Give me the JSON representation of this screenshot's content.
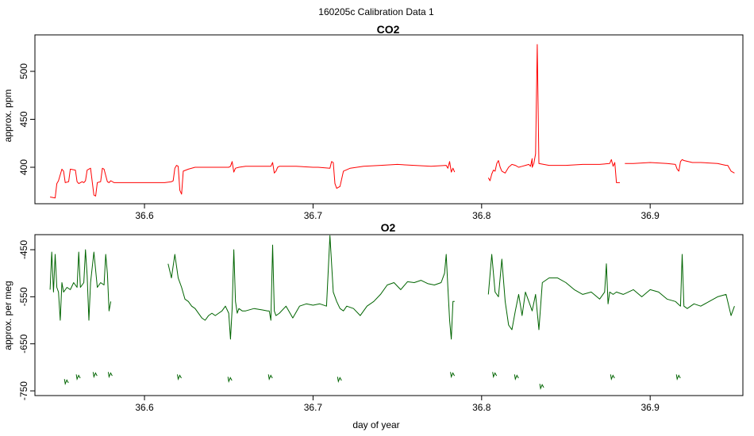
{
  "figure": {
    "suptitle": "160205c   Calibration Data 1"
  },
  "chart_data": [
    {
      "type": "line",
      "title": "CO2",
      "xlabel": "",
      "ylabel": "approx. ppm",
      "xlim": [
        36.535,
        36.955
      ],
      "ylim": [
        362,
        538
      ],
      "xticks": [
        36.6,
        36.7,
        36.8,
        36.9
      ],
      "xtick_labels": [
        "36.6",
        "36.7",
        "36.8",
        "36.9"
      ],
      "yticks": [
        400,
        450,
        500
      ],
      "ytick_labels": [
        "400",
        "450",
        "500"
      ],
      "grid": false,
      "color": "#ff0000",
      "series": [
        {
          "x": [
            36.544,
            36.547,
            36.548,
            36.549,
            36.551,
            36.552,
            36.553,
            36.555,
            36.556,
            36.559,
            36.56,
            36.561,
            36.562,
            36.563,
            36.564,
            36.565,
            36.566,
            36.568,
            36.569,
            36.57,
            36.571,
            36.572,
            36.574,
            36.575,
            36.576,
            36.578,
            36.579,
            36.58,
            36.582,
            36.584,
            36.6,
            36.612,
            36.616,
            36.617,
            36.618,
            36.619,
            36.62,
            36.621,
            36.622,
            36.623,
            36.626,
            36.63,
            36.64,
            36.65,
            36.651,
            36.652,
            36.653,
            36.654,
            36.656,
            36.66,
            36.67,
            36.675,
            36.676,
            36.677,
            36.678,
            36.679,
            36.68,
            36.69,
            36.7,
            36.703,
            36.71,
            36.711,
            36.712,
            36.713,
            36.714,
            36.716,
            36.718,
            36.722,
            36.73,
            36.74,
            36.75,
            36.76,
            36.77,
            36.779,
            36.78,
            36.781,
            36.782,
            36.783,
            36.784
          ],
          "y": [
            369,
            368,
            383,
            386,
            398,
            396,
            384,
            385,
            398,
            397,
            385,
            383,
            384,
            385,
            384,
            386,
            397,
            399,
            385,
            371,
            370,
            384,
            385,
            399,
            398,
            385,
            384,
            386,
            384,
            384,
            384,
            384,
            385,
            386,
            399,
            402,
            401,
            376,
            372,
            396,
            398,
            400,
            400,
            400,
            401,
            406,
            395,
            399,
            400,
            401,
            401,
            401,
            405,
            394,
            396,
            400,
            401,
            401,
            400,
            400,
            399,
            406,
            405,
            383,
            378,
            380,
            396,
            399,
            401,
            402,
            403,
            402,
            401,
            402,
            399,
            406,
            395,
            399,
            395
          ]
        },
        {
          "x": [
            36.804,
            36.805,
            36.806,
            36.807,
            36.808,
            36.809,
            36.81,
            36.811,
            36.812,
            36.814,
            36.816,
            36.818,
            36.82,
            36.822,
            36.824,
            36.826,
            36.828,
            36.829,
            36.83,
            36.83,
            36.831,
            36.832,
            36.833,
            36.834,
            36.84,
            36.85,
            36.86,
            36.87,
            36.876,
            36.877,
            36.878,
            36.879,
            36.88,
            36.882
          ],
          "y": [
            389,
            386,
            393,
            397,
            396,
            404,
            407,
            400,
            396,
            394,
            400,
            403,
            402,
            400,
            401,
            402,
            403,
            401,
            409,
            400,
            404,
            414,
            528,
            404,
            402,
            402,
            403,
            403,
            404,
            408,
            401,
            405,
            384,
            384
          ]
        },
        {
          "x": [
            36.885,
            36.89,
            36.9,
            36.91,
            36.915,
            36.916,
            36.917,
            36.918,
            36.919,
            36.92,
            36.925,
            36.93,
            36.94,
            36.945,
            36.946,
            36.948,
            36.95
          ],
          "y": [
            404,
            404,
            405,
            404,
            403,
            398,
            396,
            406,
            408,
            407,
            405,
            405,
            404,
            402,
            402,
            396,
            394
          ]
        }
      ]
    },
    {
      "type": "line",
      "title": "O2",
      "xlabel": "day of year",
      "ylabel": "approx. per meg",
      "xlim": [
        36.535,
        36.955
      ],
      "ylim": [
        -760,
        -418
      ],
      "xticks": [
        36.6,
        36.7,
        36.8,
        36.9
      ],
      "xtick_labels": [
        "36.6",
        "36.7",
        "36.8",
        "36.9"
      ],
      "yticks": [
        -450,
        -550,
        -650,
        -750
      ],
      "ytick_labels": [
        "-450",
        "-550",
        "-650",
        "-750"
      ],
      "grid": false,
      "color": "#006400",
      "series": [
        {
          "x": [
            36.544,
            36.545,
            36.546,
            36.547,
            36.548,
            36.549,
            36.55,
            36.551,
            36.552,
            36.554,
            36.556,
            36.558,
            36.56,
            36.561,
            36.562,
            36.564,
            36.565,
            36.566,
            36.567,
            36.568,
            36.57,
            36.572,
            36.574,
            36.576,
            36.577,
            36.578,
            36.579,
            36.58
          ],
          "y": [
            -535,
            -455,
            -540,
            -460,
            -530,
            -540,
            -600,
            -520,
            -540,
            -530,
            -535,
            -520,
            -530,
            -455,
            -530,
            -520,
            -450,
            -505,
            -600,
            -520,
            -455,
            -530,
            -520,
            -525,
            -460,
            -500,
            -580,
            -560
          ]
        },
        {
          "x": [
            36.614,
            36.616,
            36.618,
            36.62,
            36.622,
            36.624,
            36.626,
            36.628,
            36.63,
            36.632,
            36.634,
            36.636,
            36.638,
            36.64,
            36.642,
            36.644,
            36.646,
            36.648,
            36.65,
            36.651,
            36.652,
            36.653,
            36.654,
            36.655,
            36.656,
            36.658,
            36.66,
            36.665,
            36.67,
            36.673,
            36.674,
            36.675,
            36.676,
            36.677,
            36.678,
            36.68,
            36.684,
            36.688,
            36.692,
            36.696,
            36.7,
            36.704,
            36.708,
            36.71,
            36.712,
            36.714,
            36.716,
            36.718,
            36.72,
            36.724,
            36.728,
            36.732,
            36.736,
            36.74,
            36.744,
            36.748,
            36.752,
            36.756,
            36.76,
            36.764,
            36.768,
            36.772,
            36.776,
            36.778,
            36.779,
            36.78,
            36.781,
            36.782,
            36.783,
            36.784
          ],
          "y": [
            -480,
            -510,
            -460,
            -510,
            -530,
            -555,
            -560,
            -570,
            -575,
            -585,
            -595,
            -600,
            -590,
            -585,
            -590,
            -585,
            -580,
            -570,
            -585,
            -640,
            -575,
            -450,
            -560,
            -585,
            -575,
            -580,
            -580,
            -575,
            -578,
            -580,
            -580,
            -600,
            -440,
            -580,
            -590,
            -585,
            -570,
            -595,
            -570,
            -565,
            -568,
            -565,
            -570,
            -420,
            -540,
            -560,
            -575,
            -580,
            -570,
            -575,
            -590,
            -570,
            -560,
            -545,
            -525,
            -520,
            -535,
            -518,
            -520,
            -515,
            -522,
            -525,
            -520,
            -500,
            -460,
            -530,
            -600,
            -640,
            -560,
            -560
          ]
        },
        {
          "x": [
            36.804,
            36.806,
            36.808,
            36.81,
            36.812,
            36.814,
            36.816,
            36.818,
            36.82,
            36.822,
            36.824,
            36.826,
            36.828,
            36.83,
            36.832,
            36.834,
            36.836,
            36.84,
            36.845,
            36.85,
            36.855,
            36.86,
            36.865,
            36.87,
            36.873,
            36.874,
            36.875,
            36.876,
            36.878,
            36.88,
            36.884,
            36.89,
            36.895,
            36.9,
            36.905,
            36.91,
            36.915,
            36.918,
            36.919,
            36.92,
            36.922,
            36.926,
            36.93,
            36.935,
            36.94,
            36.945,
            36.948,
            36.95
          ],
          "y": [
            -545,
            -460,
            -540,
            -550,
            -470,
            -560,
            -610,
            -620,
            -580,
            -545,
            -590,
            -540,
            -560,
            -580,
            -545,
            -620,
            -520,
            -510,
            -510,
            -520,
            -535,
            -545,
            -540,
            -555,
            -540,
            -480,
            -565,
            -540,
            -545,
            -540,
            -545,
            -535,
            -550,
            -535,
            -540,
            -555,
            -560,
            -570,
            -460,
            -570,
            -575,
            -565,
            -570,
            -560,
            -550,
            -545,
            -590,
            -570
          ]
        }
      ],
      "drops": [
        {
          "x": 36.553,
          "low": -735
        },
        {
          "x": 36.56,
          "low": -725
        },
        {
          "x": 36.57,
          "low": -720
        },
        {
          "x": 36.579,
          "low": -720
        },
        {
          "x": 36.62,
          "low": -725
        },
        {
          "x": 36.65,
          "low": -730
        },
        {
          "x": 36.674,
          "low": -725
        },
        {
          "x": 36.715,
          "low": -730
        },
        {
          "x": 36.782,
          "low": -720
        },
        {
          "x": 36.807,
          "low": -720
        },
        {
          "x": 36.82,
          "low": -725
        },
        {
          "x": 36.835,
          "low": -745
        },
        {
          "x": 36.877,
          "low": -725
        },
        {
          "x": 36.916,
          "low": -725
        }
      ]
    }
  ]
}
